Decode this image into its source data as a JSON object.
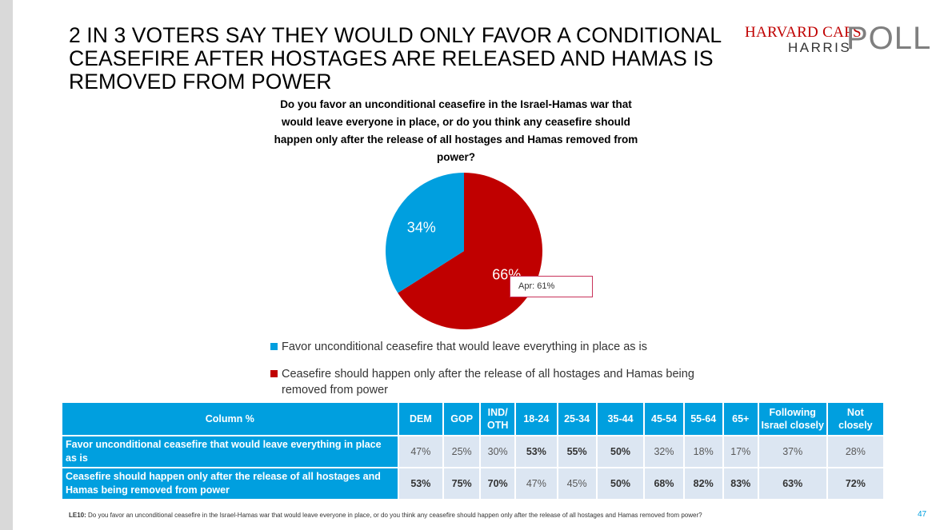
{
  "title": "2 IN 3 VOTERS SAY THEY WOULD ONLY FAVOR A CONDITIONAL CEASEFIRE AFTER HOSTAGES ARE RELEASED AND HAMAS IS REMOVED FROM POWER",
  "logo": {
    "line1": "HARVARD CAPS",
    "line2": "HARRIS",
    "line3": "POLL"
  },
  "question": "Do you favor an unconditional ceasefire in the Israel-Hamas war that would leave everyone in place, or do you think any ceasefire should happen only after the release of all hostages and Hamas removed from power?",
  "chart_data": {
    "type": "pie",
    "title": "Do you favor an unconditional ceasefire in the Israel-Hamas war that would leave everyone in place, or do you think any ceasefire should happen only after the release of all hostages and Hamas removed from power?",
    "slices": [
      {
        "label": "Ceasefire should happen only after the release of all hostages and Hamas being removed from power",
        "value": 66,
        "display": "66%",
        "color": "#c00000"
      },
      {
        "label": "Favor unconditional ceasefire that would leave everything in place as is",
        "value": 34,
        "display": "34%",
        "color": "#009fdf"
      }
    ],
    "annotation": "Apr: 61%",
    "legend_placement": "bottom"
  },
  "legend": [
    {
      "label": "Favor unconditional ceasefire that would leave everything in place as is",
      "color": "#009fdf"
    },
    {
      "label": "Ceasefire should happen only after the release of all hostages and Hamas being removed from power",
      "color": "#c00000"
    }
  ],
  "table": {
    "corner": "Column %",
    "headers": [
      "DEM",
      "GOP",
      "IND/ OTH",
      "18-24",
      "25-34",
      "35-44",
      "45-54",
      "55-64",
      "65+",
      "Following Israel closely",
      "Not closely"
    ],
    "rows": [
      {
        "label": "Favor unconditional ceasefire that would leave everything in place as is",
        "values": [
          "47%",
          "25%",
          "30%",
          "53%",
          "55%",
          "50%",
          "32%",
          "18%",
          "17%",
          "37%",
          "28%"
        ],
        "bold": [
          false,
          false,
          false,
          true,
          true,
          true,
          false,
          false,
          false,
          false,
          false
        ]
      },
      {
        "label": "Ceasefire should happen only after the release of all hostages and Hamas being removed from power",
        "values": [
          "53%",
          "75%",
          "70%",
          "47%",
          "45%",
          "50%",
          "68%",
          "82%",
          "83%",
          "63%",
          "72%"
        ],
        "bold": [
          true,
          true,
          true,
          false,
          false,
          true,
          true,
          true,
          true,
          true,
          true
        ]
      }
    ]
  },
  "footnote": {
    "code": "LE10:",
    "text": "Do you favor an unconditional ceasefire in the Israel-Hamas war that would leave everyone in place, or do you think any ceasefire should happen only after the release of all hostages and Hamas removed from power?"
  },
  "page_number": "47"
}
